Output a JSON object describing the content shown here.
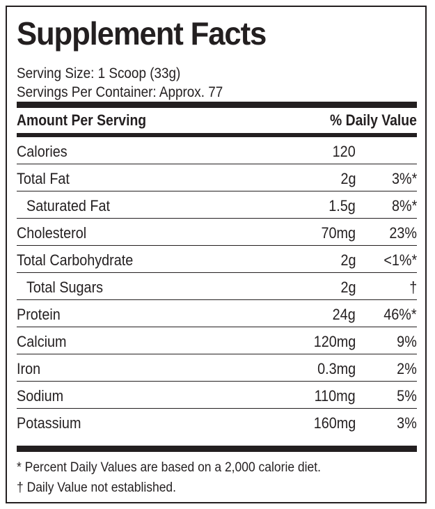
{
  "title": "Supplement Facts",
  "serving_size": "Serving Size: 1 Scoop (33g)",
  "servings_per_container": "Servings Per Container: Approx. 77",
  "header": {
    "left": "Amount Per Serving",
    "right": "% Daily Value"
  },
  "rows": [
    {
      "name": "Calories",
      "amount": "120",
      "dv": ""
    },
    {
      "name": "Total Fat",
      "amount": "2g",
      "dv": "3%*"
    },
    {
      "name": "Saturated Fat",
      "amount": "1.5g",
      "dv": "8%*"
    },
    {
      "name": "Cholesterol",
      "amount": "70mg",
      "dv": "23%"
    },
    {
      "name": "Total Carbohydrate",
      "amount": "2g",
      "dv": "<1%*"
    },
    {
      "name": "Total Sugars",
      "amount": "2g",
      "dv": "†"
    },
    {
      "name": "Protein",
      "amount": "24g",
      "dv": "46%*"
    },
    {
      "name": "Calcium",
      "amount": "120mg",
      "dv": "9%"
    },
    {
      "name": "Iron",
      "amount": "0.3mg",
      "dv": "2%"
    },
    {
      "name": "Sodium",
      "amount": "110mg",
      "dv": "5%"
    },
    {
      "name": "Potassium",
      "amount": "160mg",
      "dv": "3%"
    }
  ],
  "footnotes": [
    "* Percent Daily Values are based on a 2,000 calorie diet.",
    "† Daily Value not established."
  ]
}
